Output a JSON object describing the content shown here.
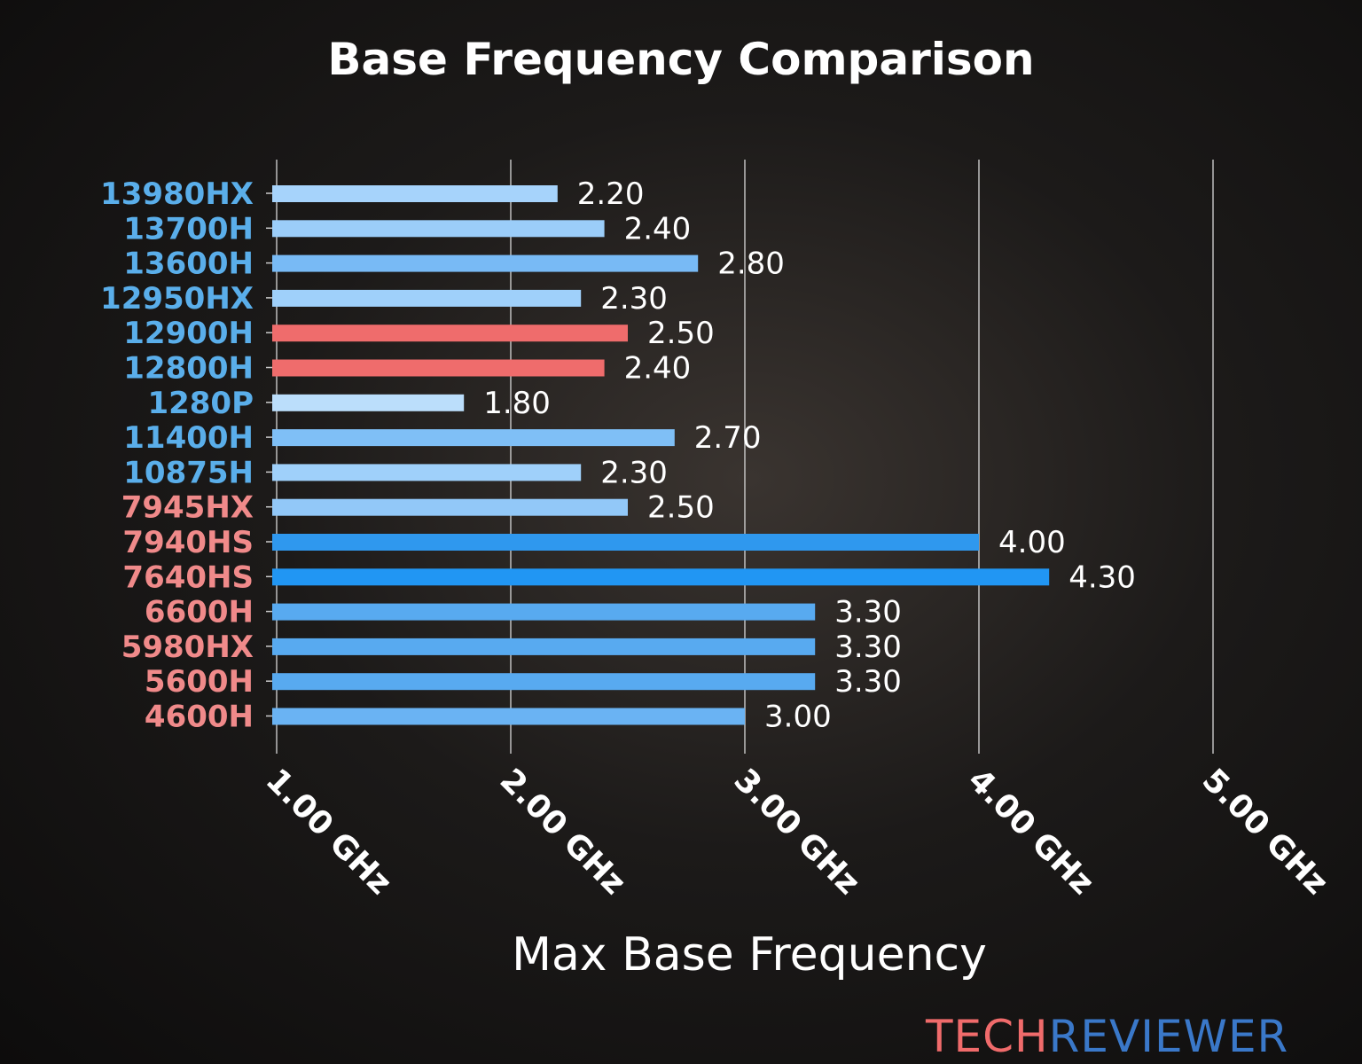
{
  "chart_data": {
    "type": "bar",
    "orientation": "horizontal",
    "title": "Base Frequency Comparison",
    "xlabel": "Max Base Frequency",
    "ylabel": "",
    "xlim": [
      1.0,
      5.0
    ],
    "xticks": [
      1.0,
      2.0,
      3.0,
      4.0,
      5.0
    ],
    "xtick_labels": [
      "1.00 GHz",
      "2.00 GHz",
      "3.00 GHz",
      "4.00 GHz",
      "5.00 GHz"
    ],
    "grid": "vertical",
    "categories": [
      "13980HX",
      "13700H",
      "13600H",
      "12950HX",
      "12900H",
      "12800H",
      "1280P",
      "11400H",
      "10875H",
      "7945HX",
      "7940HS",
      "7640HS",
      "6600H",
      "5980HX",
      "5600H",
      "4600H"
    ],
    "values": [
      2.2,
      2.4,
      2.8,
      2.3,
      2.5,
      2.4,
      1.8,
      2.7,
      2.3,
      2.5,
      4.0,
      4.3,
      3.3,
      3.3,
      3.3,
      3.0
    ],
    "value_labels": [
      "2.20",
      "2.40",
      "2.80",
      "2.30",
      "2.50",
      "2.40",
      "1.80",
      "2.70",
      "2.30",
      "2.50",
      "4.00",
      "4.30",
      "3.30",
      "3.30",
      "3.30",
      "3.00"
    ],
    "bar_colors": [
      "#a6d3fb",
      "#9bcdf9",
      "#78baf5",
      "#9fd0fa",
      "#ef6c6c",
      "#ef6c6c",
      "#bbdefb",
      "#7fbff6",
      "#9fd0fa",
      "#92c8f8",
      "#2f98ee",
      "#2196f3",
      "#58aaf0",
      "#58aaf0",
      "#58aaf0",
      "#6ab3f3"
    ],
    "label_colors": [
      "#5aaeea",
      "#5aaeea",
      "#5aaeea",
      "#5aaeea",
      "#5aaeea",
      "#5aaeea",
      "#5aaeea",
      "#5aaeea",
      "#5aaeea",
      "#f08a8a",
      "#f08a8a",
      "#f08a8a",
      "#f08a8a",
      "#f08a8a",
      "#f08a8a",
      "#f08a8a"
    ]
  },
  "watermark": {
    "part1": "TECH",
    "part2": "REVIEWER",
    "color1": "#f06b6b",
    "color2": "#3a78c9"
  }
}
